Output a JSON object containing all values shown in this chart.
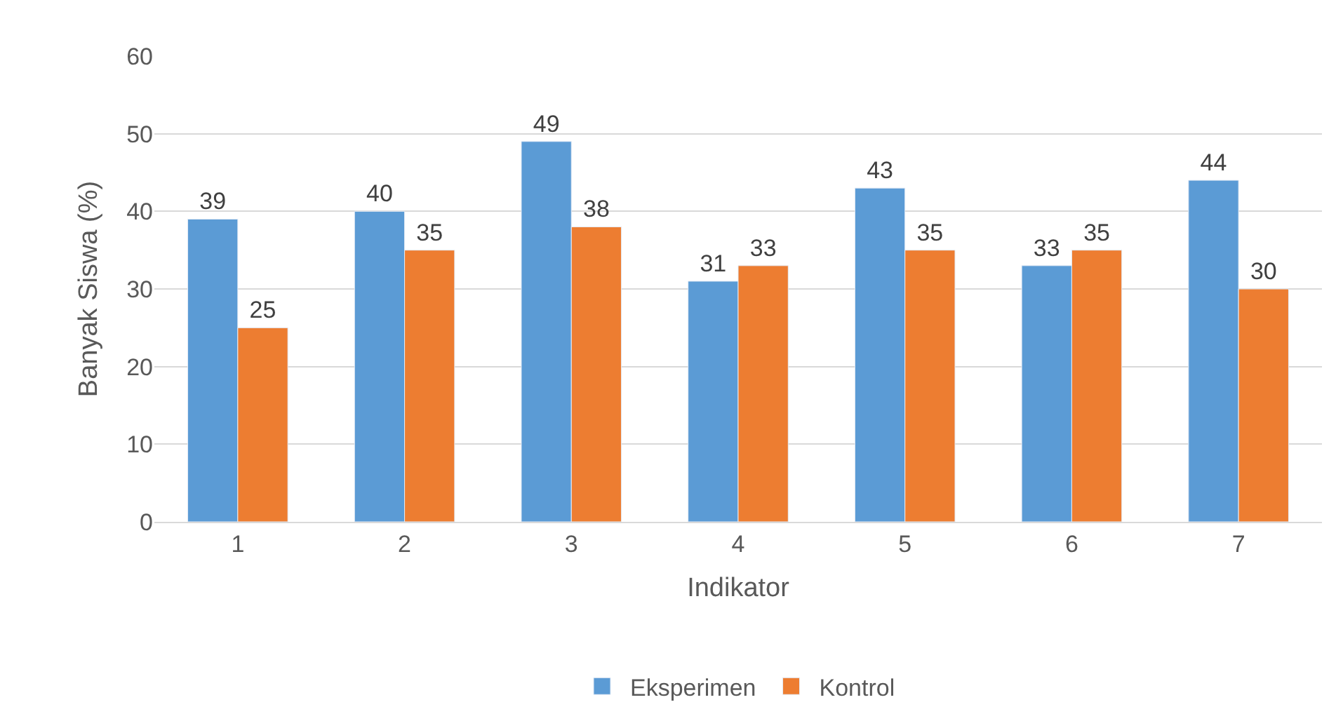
{
  "chart_data": {
    "type": "bar",
    "xlabel": "Indikator",
    "ylabel": "Banyak Siswa (%)",
    "categories": [
      "1",
      "2",
      "3",
      "4",
      "5",
      "6",
      "7"
    ],
    "series": [
      {
        "name": "Eksperimen",
        "color": "#5b9bd5",
        "values": [
          39,
          40,
          49,
          31,
          43,
          33,
          44
        ]
      },
      {
        "name": "Kontrol",
        "color": "#ed7d31",
        "values": [
          25,
          35,
          38,
          33,
          35,
          35,
          30
        ]
      }
    ],
    "ylim": [
      0,
      60
    ],
    "yticks": [
      0,
      10,
      20,
      30,
      40,
      50,
      60
    ],
    "grid": "y",
    "legend": "bottom",
    "data_labels": true
  }
}
